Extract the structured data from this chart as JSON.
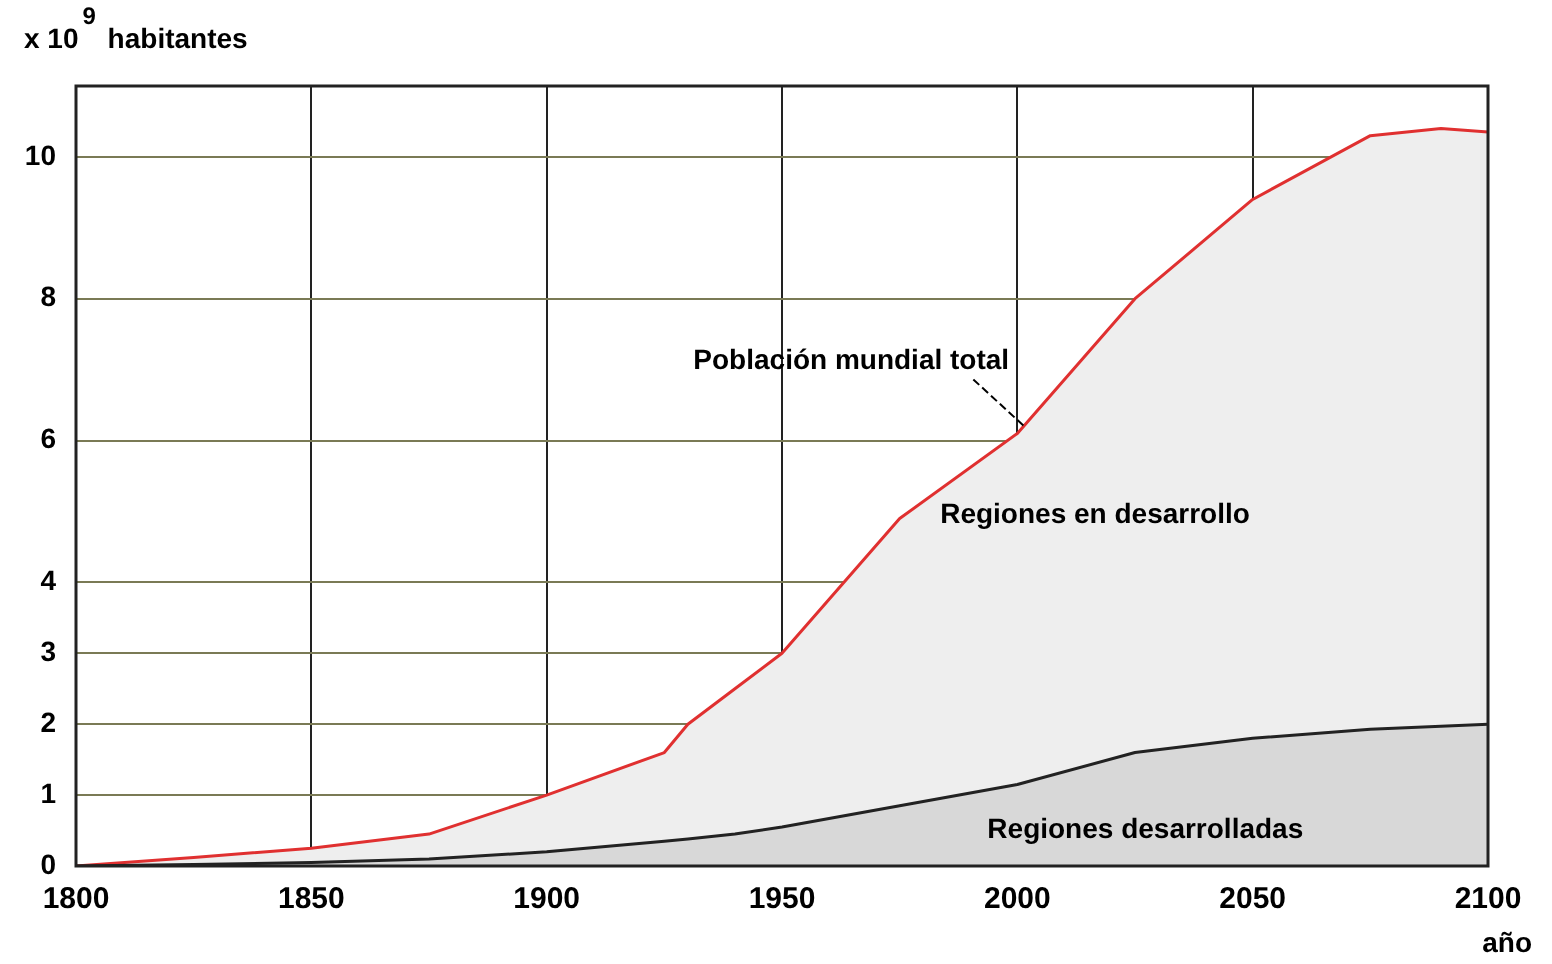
{
  "chart_data": {
    "type": "area",
    "ylabel": "x 10$^{9}$ habitantes",
    "xlabel": "año",
    "x": [
      1800,
      1825,
      1850,
      1875,
      1900,
      1925,
      1930,
      1940,
      1950,
      1975,
      2000,
      2025,
      2050,
      2075,
      2090,
      2100
    ],
    "series": [
      {
        "name": "Población mundial total",
        "color": "#e03030",
        "values": [
          0,
          0.12,
          0.25,
          0.45,
          1.0,
          1.6,
          2.0,
          2.5,
          3.0,
          4.9,
          6.1,
          8.0,
          9.4,
          10.3,
          10.4,
          10.35
        ]
      },
      {
        "name": "Regiones desarrolladas",
        "color": "#222222",
        "values": [
          0,
          0.02,
          0.05,
          0.1,
          0.2,
          0.35,
          0.38,
          0.45,
          0.55,
          0.85,
          1.15,
          1.6,
          1.8,
          1.93,
          1.97,
          2.0
        ]
      }
    ],
    "annotations": [
      "Regiones en desarrollo"
    ],
    "xlim": [
      1800,
      2100
    ],
    "xticks": [
      1800,
      1850,
      1900,
      1950,
      2000,
      2050,
      2100
    ],
    "ylim": [
      0,
      11
    ],
    "yticks": [
      0,
      1,
      2,
      3,
      4,
      6,
      8,
      10
    ],
    "grid": true,
    "legend": false
  }
}
